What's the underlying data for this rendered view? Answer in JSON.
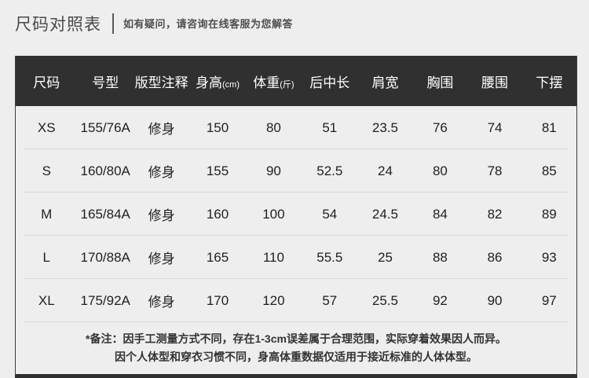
{
  "page": {
    "title": "尺码对照表",
    "subtitle": "如有疑问，请咨询在线客服为您解答"
  },
  "table": {
    "headers": [
      {
        "label": "尺码",
        "unit": ""
      },
      {
        "label": "号型",
        "unit": ""
      },
      {
        "label": "版型注释",
        "unit": ""
      },
      {
        "label": "身高",
        "unit": "(cm)"
      },
      {
        "label": "体重",
        "unit": "(斤)"
      },
      {
        "label": "后中长",
        "unit": ""
      },
      {
        "label": "肩宽",
        "unit": ""
      },
      {
        "label": "胸围",
        "unit": ""
      },
      {
        "label": "腰围",
        "unit": ""
      },
      {
        "label": "下摆",
        "unit": ""
      }
    ],
    "rows": [
      {
        "cells": [
          "XS",
          "155/76A",
          "修身",
          "150",
          "80",
          "51",
          "23.5",
          "76",
          "74",
          "81"
        ]
      },
      {
        "cells": [
          "S",
          "160/80A",
          "修身",
          "155",
          "90",
          "52.5",
          "24",
          "80",
          "78",
          "85"
        ]
      },
      {
        "cells": [
          "M",
          "165/84A",
          "修身",
          "160",
          "100",
          "54",
          "24.5",
          "84",
          "82",
          "89"
        ]
      },
      {
        "cells": [
          "L",
          "170/88A",
          "修身",
          "165",
          "110",
          "55.5",
          "25",
          "88",
          "86",
          "93"
        ]
      },
      {
        "cells": [
          "XL",
          "175/92A",
          "修身",
          "170",
          "120",
          "57",
          "25.5",
          "92",
          "90",
          "97"
        ]
      }
    ],
    "note_line1": "*备注：因手工测量方式不同，存在1-3cm误差属于合理范围，实际穿着效果因人而异。",
    "note_line2": "因个人体型和穿衣习惯不同，身高体重数据仅适用于接近标准的人体体型。"
  },
  "colors": {
    "page_bg": "#eeeeee",
    "table_header_bg": "#303030",
    "table_header_text": "#ffffff",
    "separator": "#d9d9d9",
    "body_text": "#1f1f1f"
  }
}
